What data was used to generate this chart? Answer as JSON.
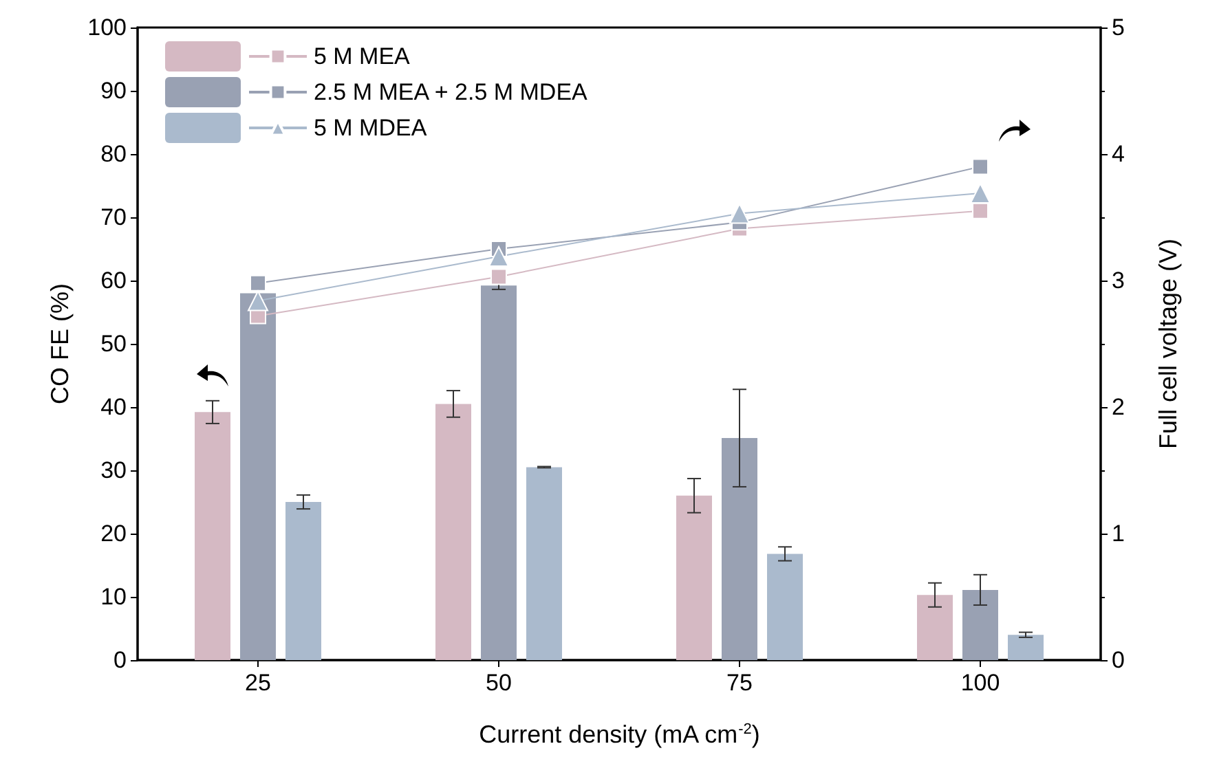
{
  "chart_data": {
    "type": "bar",
    "xlabel": "Current density (mA cm$^{-2}$)",
    "ylabel": "CO FE (%)",
    "y2label": "Full cell voltage (V)",
    "categories": [
      "25",
      "50",
      "75",
      "100"
    ],
    "series": [
      {
        "color": "#d5b9c3",
        "values": [
          39.2,
          40.5,
          26.0,
          10.3
        ],
        "errors": [
          1.8,
          2.1,
          2.7,
          1.9
        ]
      },
      {
        "color": "#99a1b3",
        "values": [
          58.0,
          59.2,
          35.1,
          11.1
        ],
        "errors": [
          null,
          0.6,
          7.7,
          2.4
        ]
      },
      {
        "color": "#aabacd",
        "values": [
          25.0,
          30.5,
          16.8,
          4.0
        ],
        "errors": [
          1.1,
          0.1,
          1.1,
          0.4
        ]
      },
      {
        "name": "5 M MEA",
        "type": "line",
        "axis": "y2",
        "marker": "square",
        "color": "#d5b9c3",
        "values": [
          2.72,
          3.03,
          3.41,
          3.55
        ]
      },
      {
        "name": "2.5 M MEA + 2.5 M MDEA",
        "type": "line",
        "axis": "y2",
        "marker": "square",
        "color": "#99a1b3",
        "values": [
          2.98,
          3.25,
          3.46,
          3.9
        ]
      },
      {
        "name": "5 M MDEA",
        "type": "line",
        "axis": "y2",
        "marker": "triangle",
        "color": "#aabacd",
        "values": [
          2.84,
          3.19,
          3.53,
          3.69
        ]
      }
    ],
    "ylim": [
      0,
      100
    ],
    "yticks": [
      0,
      10,
      20,
      30,
      40,
      50,
      60,
      70,
      80,
      90,
      100
    ],
    "y2lim": [
      0,
      5
    ],
    "y2ticks": [
      0,
      1,
      2,
      3,
      4,
      5
    ],
    "grid": false,
    "legend": "top left"
  }
}
